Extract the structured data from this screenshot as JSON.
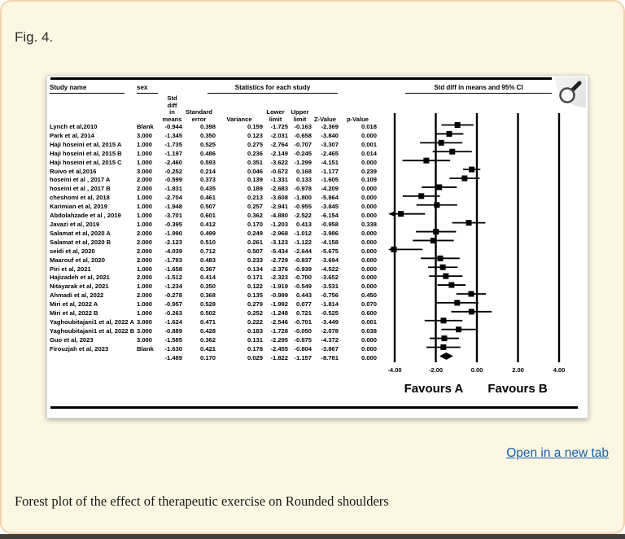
{
  "page": {
    "fig_label": "Fig. 4.",
    "caption": "Forest plot of the effect of therapeutic exercise on Rounded shoulders",
    "open_in_new_tab": "Open in a new tab"
  },
  "figure": {
    "table": {
      "study_col_header": "Study name",
      "sex_col_header": "sex",
      "stats_group_header": "Statistics for each study",
      "subheaders": [
        "Std diff\nin means",
        "Standard\nerror",
        "Variance",
        "Lower\nlimit",
        "Upper\nlimit",
        "Z-Value",
        "p-Value"
      ]
    },
    "plot": {
      "header": "Std diff in means and 95% CI",
      "tick_labels": [
        "-4.00",
        "-2.00",
        "0.00",
        "2.00",
        "4.00"
      ],
      "tick_values": [
        -4,
        -2,
        0,
        2,
        4
      ],
      "favours_a": "Favours A",
      "favours_b": "Favours B"
    },
    "icons": {
      "magnifier": "zoom-magnifier"
    }
  },
  "chart_data": {
    "type": "forest",
    "x_axis_label": "Std diff in means",
    "xlim": [
      -4,
      4
    ],
    "columns": [
      "Study name",
      "sex",
      "Std diff in means",
      "Standard error",
      "Variance",
      "Lower limit",
      "Upper limit",
      "Z-Value",
      "p-Value"
    ],
    "studies": [
      {
        "name": "Lynch et al,2010",
        "sex": "Blank",
        "std_diff": -0.944,
        "std_err": 0.398,
        "variance": 0.159,
        "lower": -1.725,
        "upper": -0.163,
        "z": -2.369,
        "p": 0.018
      },
      {
        "name": "Park et al, 2014",
        "sex": "3.000",
        "std_diff": -1.345,
        "std_err": 0.35,
        "variance": 0.123,
        "lower": -2.031,
        "upper": -0.658,
        "z": -3.84,
        "p": 0.0
      },
      {
        "name": "Haji hoseini et al, 2015 A",
        "sex": "1.000",
        "std_diff": -1.735,
        "std_err": 0.525,
        "variance": 0.275,
        "lower": -2.764,
        "upper": -0.707,
        "z": -3.307,
        "p": 0.001
      },
      {
        "name": "Haji hoseini et al, 2015 B",
        "sex": "1.000",
        "std_diff": -1.197,
        "std_err": 0.486,
        "variance": 0.236,
        "lower": -2.149,
        "upper": -0.245,
        "z": -2.465,
        "p": 0.014
      },
      {
        "name": "Haji hoseini et al, 2015 C",
        "sex": "1.000",
        "std_diff": -2.46,
        "std_err": 0.593,
        "variance": 0.351,
        "lower": -3.622,
        "upper": -1.299,
        "z": -4.151,
        "p": 0.0
      },
      {
        "name": "Ruivo et al,2016",
        "sex": "3.000",
        "std_diff": -0.252,
        "std_err": 0.214,
        "variance": 0.046,
        "lower": -0.672,
        "upper": 0.168,
        "z": -1.177,
        "p": 0.239
      },
      {
        "name": "hoseini et al , 2017 A",
        "sex": "2.000",
        "std_diff": -0.599,
        "std_err": 0.373,
        "variance": 0.139,
        "lower": -1.331,
        "upper": 0.133,
        "z": -1.605,
        "p": 0.109
      },
      {
        "name": "hoseini et al , 2017 B",
        "sex": "2.000",
        "std_diff": -1.831,
        "std_err": 0.435,
        "variance": 0.189,
        "lower": -2.683,
        "upper": -0.978,
        "z": -4.209,
        "p": 0.0
      },
      {
        "name": "cheshomi et al, 2018",
        "sex": "1.000",
        "std_diff": -2.704,
        "std_err": 0.461,
        "variance": 0.213,
        "lower": -3.608,
        "upper": -1.8,
        "z": -5.864,
        "p": 0.0
      },
      {
        "name": "Karimian et al, 2019",
        "sex": "1.000",
        "std_diff": -1.948,
        "std_err": 0.507,
        "variance": 0.257,
        "lower": -2.941,
        "upper": -0.955,
        "z": -3.845,
        "p": 0.0
      },
      {
        "name": "Abdolahzade et al , 2019",
        "sex": "1.000",
        "std_diff": -3.701,
        "std_err": 0.601,
        "variance": 0.362,
        "lower": -4.88,
        "upper": -2.522,
        "z": -6.154,
        "p": 0.0
      },
      {
        "name": "Javazi et al, 2019",
        "sex": "1.000",
        "std_diff": -0.395,
        "std_err": 0.412,
        "variance": 0.17,
        "lower": -1.203,
        "upper": 0.413,
        "z": -0.958,
        "p": 0.338
      },
      {
        "name": "Salamat et al, 2020 A",
        "sex": "2.000",
        "std_diff": -1.99,
        "std_err": 0.499,
        "variance": 0.249,
        "lower": -2.968,
        "upper": -1.012,
        "z": -3.986,
        "p": 0.0
      },
      {
        "name": "Salamat et al, 2020 B",
        "sex": "2.000",
        "std_diff": -2.123,
        "std_err": 0.51,
        "variance": 0.261,
        "lower": -3.123,
        "upper": -1.122,
        "z": -4.158,
        "p": 0.0
      },
      {
        "name": "seidi et al, 2020",
        "sex": "2.000",
        "std_diff": -4.039,
        "std_err": 0.712,
        "variance": 0.507,
        "lower": -5.434,
        "upper": -2.644,
        "z": -5.675,
        "p": 0.0
      },
      {
        "name": "Maarouf et al, 2020",
        "sex": "2.000",
        "std_diff": -1.783,
        "std_err": 0.483,
        "variance": 0.233,
        "lower": -2.729,
        "upper": -0.837,
        "z": -3.694,
        "p": 0.0
      },
      {
        "name": "Piri et al, 2021",
        "sex": "1.000",
        "std_diff": -1.658,
        "std_err": 0.367,
        "variance": 0.134,
        "lower": -2.376,
        "upper": -0.939,
        "z": -4.522,
        "p": 0.0
      },
      {
        "name": "Hajizadeh et al, 2021",
        "sex": "2.000",
        "std_diff": -1.512,
        "std_err": 0.414,
        "variance": 0.171,
        "lower": -2.323,
        "upper": -0.7,
        "z": -3.652,
        "p": 0.0
      },
      {
        "name": "Nitayarak et al, 2021",
        "sex": "1.000",
        "std_diff": -1.234,
        "std_err": 0.35,
        "variance": 0.122,
        "lower": -1.919,
        "upper": -0.549,
        "z": -3.531,
        "p": 0.0
      },
      {
        "name": "Ahmadi et al, 2022",
        "sex": "2.000",
        "std_diff": -0.278,
        "std_err": 0.368,
        "variance": 0.135,
        "lower": -0.999,
        "upper": 0.443,
        "z": -0.756,
        "p": 0.45
      },
      {
        "name": "Miri et al, 2022 A",
        "sex": "1.000",
        "std_diff": -0.957,
        "std_err": 0.528,
        "variance": 0.279,
        "lower": -1.992,
        "upper": 0.077,
        "z": -1.814,
        "p": 0.07
      },
      {
        "name": "Miri et al, 2022 B",
        "sex": "1.000",
        "std_diff": -0.263,
        "std_err": 0.502,
        "variance": 0.252,
        "lower": -1.248,
        "upper": 0.721,
        "z": -0.525,
        "p": 0.6
      },
      {
        "name": "Yaghoubitajani1 et al, 2022 A",
        "sex": "3.000",
        "std_diff": -1.624,
        "std_err": 0.471,
        "variance": 0.222,
        "lower": -2.546,
        "upper": -0.701,
        "z": -3.449,
        "p": 0.001
      },
      {
        "name": "Yaghoubitajani1 et al, 2022 B",
        "sex": "3.000",
        "std_diff": -0.889,
        "std_err": 0.428,
        "variance": 0.183,
        "lower": -1.728,
        "upper": -0.05,
        "z": -2.078,
        "p": 0.038
      },
      {
        "name": "Guo et al, 2023",
        "sex": "3.000",
        "std_diff": -1.585,
        "std_err": 0.362,
        "variance": 0.131,
        "lower": -2.295,
        "upper": -0.875,
        "z": -4.372,
        "p": 0.0
      },
      {
        "name": "Firouzjah et al, 2023",
        "sex": "Blank",
        "std_diff": -1.63,
        "std_err": 0.421,
        "variance": 0.178,
        "lower": -2.455,
        "upper": -0.804,
        "z": -3.867,
        "p": 0.0
      }
    ],
    "summary": {
      "std_diff": -1.489,
      "std_err": 0.17,
      "variance": 0.029,
      "lower": -1.822,
      "upper": -1.157,
      "z": -8.781,
      "p": 0.0
    }
  }
}
